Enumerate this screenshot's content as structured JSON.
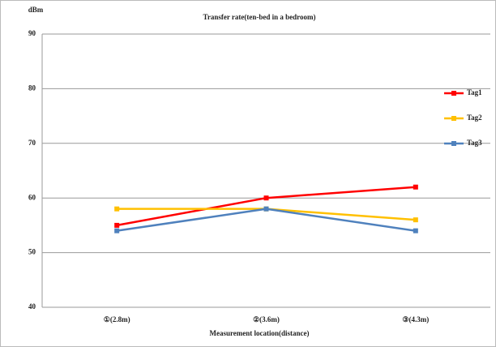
{
  "chart_data": {
    "type": "line",
    "title": "Transfer rate(ten-bed in a bedroom)",
    "y_label": "dBm",
    "x_label": "Measurement location(distance)",
    "categories": [
      "①(2.8m)",
      "②(3.6m)",
      "③(4.3m)"
    ],
    "series": [
      {
        "name": "Tag1",
        "color": "#ff0000",
        "values": [
          55,
          60,
          62
        ]
      },
      {
        "name": "Tag2",
        "color": "#ffc000",
        "values": [
          58,
          58,
          56
        ]
      },
      {
        "name": "Tag3",
        "color": "#4f81bd",
        "values": [
          54,
          58,
          54
        ]
      }
    ],
    "ylim": [
      40,
      90
    ],
    "yticks": [
      40,
      50,
      60,
      70,
      80,
      90
    ],
    "grid": true,
    "legend": "right"
  }
}
